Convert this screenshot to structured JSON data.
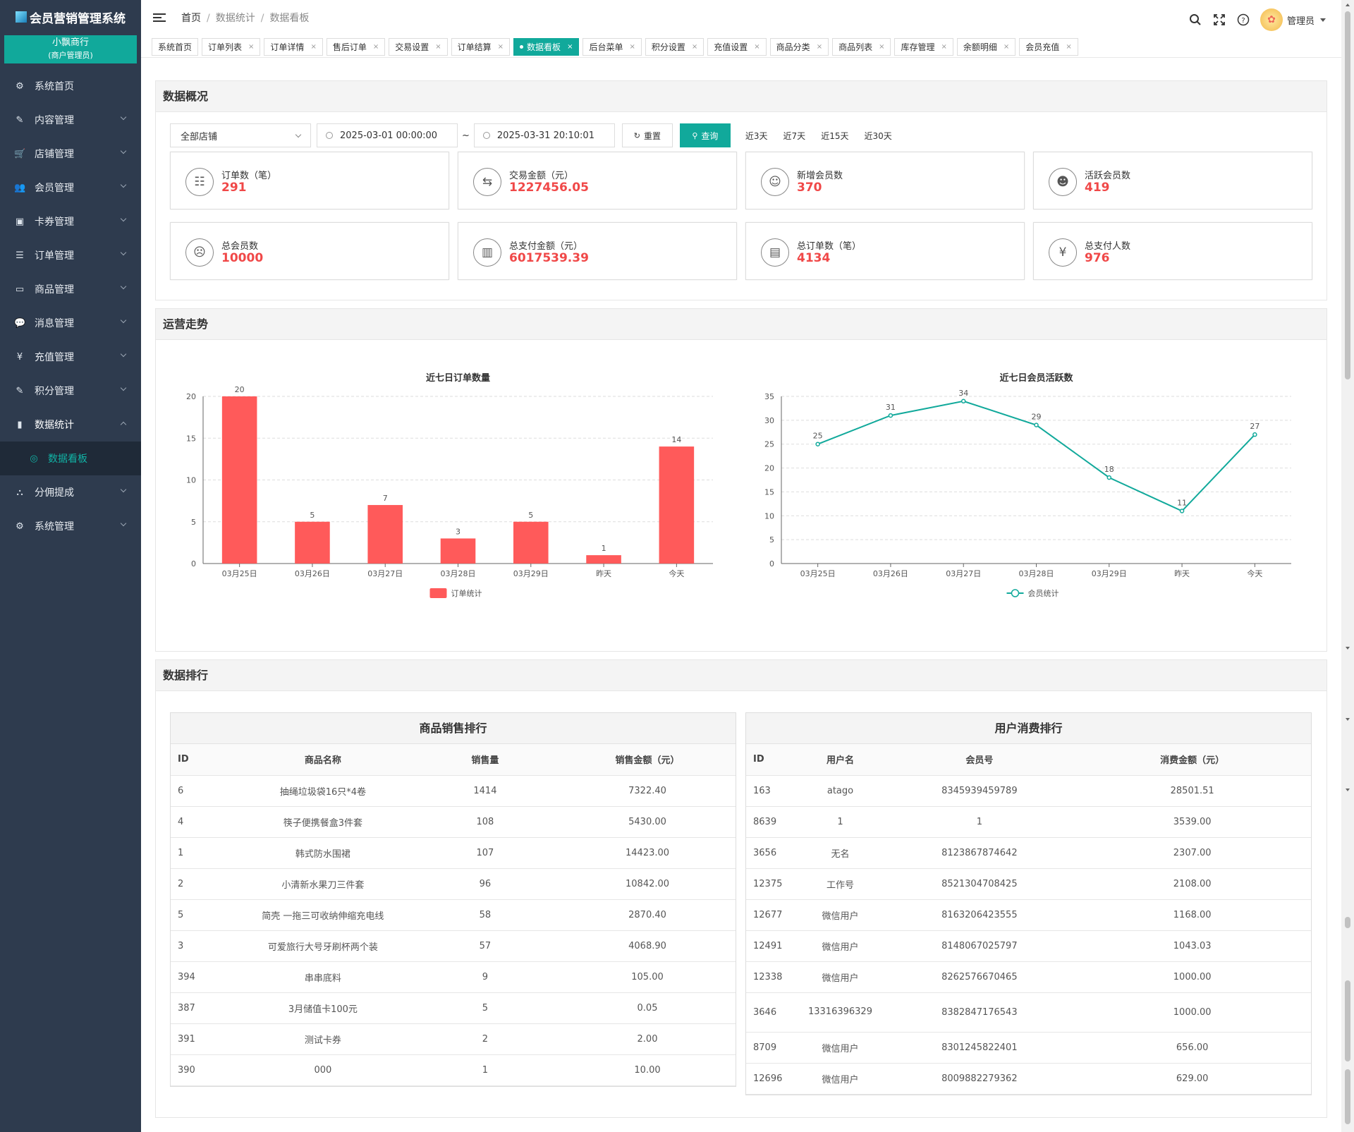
{
  "app": {
    "title": "会员营销管理系统",
    "merchant_name": "小飘商行",
    "merchant_role": "(商户管理员)"
  },
  "sidebar": {
    "items": [
      {
        "label": "系统首页",
        "icon": "dashboard-icon"
      },
      {
        "label": "内容管理",
        "icon": "edit-icon"
      },
      {
        "label": "店铺管理",
        "icon": "cart-icon"
      },
      {
        "label": "会员管理",
        "icon": "users-icon"
      },
      {
        "label": "卡券管理",
        "icon": "card-icon"
      },
      {
        "label": "订单管理",
        "icon": "list-icon"
      },
      {
        "label": "商品管理",
        "icon": "monitor-icon"
      },
      {
        "label": "消息管理",
        "icon": "message-icon"
      },
      {
        "label": "充值管理",
        "icon": "yen-icon"
      },
      {
        "label": "积分管理",
        "icon": "points-icon"
      },
      {
        "label": "数据统计",
        "icon": "bar-chart-icon"
      },
      {
        "label": "数据看板",
        "icon": "circle-icon"
      },
      {
        "label": "分佣提成",
        "icon": "sitemap-icon"
      },
      {
        "label": "系统管理",
        "icon": "gear-icon"
      }
    ]
  },
  "header": {
    "breadcrumb": [
      "首页",
      "数据统计",
      "数据看板"
    ],
    "user": "管理员"
  },
  "tabs": [
    "系统首页",
    "订单列表",
    "订单详情",
    "售后订单",
    "交易设置",
    "订单结算",
    "数据看板",
    "后台菜单",
    "积分设置",
    "充值设置",
    "商品分类",
    "商品列表",
    "库存管理",
    "余额明细",
    "会员充值"
  ],
  "active_tab": "数据看板",
  "overview": {
    "title": "数据概况",
    "store_select": "全部店铺",
    "date_start": "2025-03-01 00:00:00",
    "date_end": "2025-03-31 20:10:01",
    "tilde": "~",
    "reset_label": "重置",
    "query_label": "查询",
    "quick_ranges": [
      "近3天",
      "近7天",
      "近15天",
      "近30天"
    ],
    "stats": [
      {
        "label": "订单数（笔）",
        "value": "291",
        "icon": "order-icon"
      },
      {
        "label": "交易金额（元）",
        "value": "1227456.05",
        "icon": "exchange-icon"
      },
      {
        "label": "新增会员数",
        "value": "370",
        "icon": "new-member-icon"
      },
      {
        "label": "活跃会员数",
        "value": "419",
        "icon": "active-member-icon"
      },
      {
        "label": "总会员数",
        "value": "10000",
        "icon": "members-icon"
      },
      {
        "label": "总支付金额（元）",
        "value": "6017539.39",
        "icon": "payment-chart-icon"
      },
      {
        "label": "总订单数（笔）",
        "value": "4134",
        "icon": "clipboard-icon"
      },
      {
        "label": "总支付人数",
        "value": "976",
        "icon": "yen-circle-icon"
      }
    ]
  },
  "trend": {
    "title": "运营走势"
  },
  "chart_data": [
    {
      "type": "bar",
      "title": "近七日订单数量",
      "categories": [
        "03月25日",
        "03月26日",
        "03月27日",
        "03月28日",
        "03月29日",
        "昨天",
        "今天"
      ],
      "series": [
        {
          "name": "订单统计",
          "values": [
            20,
            5,
            7,
            3,
            5,
            1,
            14
          ]
        }
      ],
      "ylim": [
        0,
        20
      ],
      "yticks": [
        0,
        5,
        10,
        15,
        20
      ],
      "color": "#ff5a5a",
      "grid": true,
      "legend": "bottom"
    },
    {
      "type": "line",
      "title": "近七日会员活跃数",
      "categories": [
        "03月25日",
        "03月26日",
        "03月27日",
        "03月28日",
        "03月29日",
        "昨天",
        "今天"
      ],
      "series": [
        {
          "name": "会员统计",
          "values": [
            25,
            31,
            34,
            29,
            18,
            11,
            27
          ]
        }
      ],
      "ylim": [
        0,
        35
      ],
      "yticks": [
        0,
        5,
        10,
        15,
        20,
        25,
        30,
        35
      ],
      "color": "#11a99b",
      "grid": true,
      "legend": "bottom"
    }
  ],
  "ranking": {
    "title": "数据排行",
    "products": {
      "title": "商品销售排行",
      "headers": [
        "ID",
        "商品名称",
        "销售量",
        "销售金额（元）"
      ],
      "rows": [
        [
          "6",
          "抽绳垃圾袋16只*4卷",
          "1414",
          "7322.40"
        ],
        [
          "4",
          "筷子便携餐盒3件套",
          "108",
          "5430.00"
        ],
        [
          "1",
          "韩式防水围裙",
          "107",
          "14423.00"
        ],
        [
          "2",
          "小清新水果刀三件套",
          "96",
          "10842.00"
        ],
        [
          "5",
          "简壳 一拖三可收纳伸缩充电线",
          "58",
          "2870.40"
        ],
        [
          "3",
          "可爱旅行大号牙刷杯两个装",
          "57",
          "4068.90"
        ],
        [
          "394",
          "串串底料",
          "9",
          "105.00"
        ],
        [
          "387",
          "3月储值卡100元",
          "5",
          "0.05"
        ],
        [
          "391",
          "测试卡券",
          "2",
          "2.00"
        ],
        [
          "390",
          "000",
          "1",
          "10.00"
        ]
      ]
    },
    "users": {
      "title": "用户消费排行",
      "headers": [
        "ID",
        "用户名",
        "会员号",
        "消费金额（元）"
      ],
      "rows": [
        [
          "163",
          "atago",
          "8345939459789",
          "28501.51"
        ],
        [
          "8639",
          "1",
          "1",
          "3539.00"
        ],
        [
          "3656",
          "无名",
          "8123867874642",
          "2307.00"
        ],
        [
          "12375",
          "工作号",
          "8521304708425",
          "2108.00"
        ],
        [
          "12677",
          "微信用户",
          "8163206423555",
          "1168.00"
        ],
        [
          "12491",
          "微信用户",
          "8148067025797",
          "1043.03"
        ],
        [
          "12338",
          "微信用户",
          "8262576670465",
          "1000.00"
        ],
        [
          "3646",
          "13316396329",
          "8382847176543",
          "1000.00"
        ],
        [
          "8709",
          "微信用户",
          "8301245822401",
          "656.00"
        ],
        [
          "12696",
          "微信用户",
          "8009882279362",
          "629.00"
        ]
      ]
    }
  }
}
